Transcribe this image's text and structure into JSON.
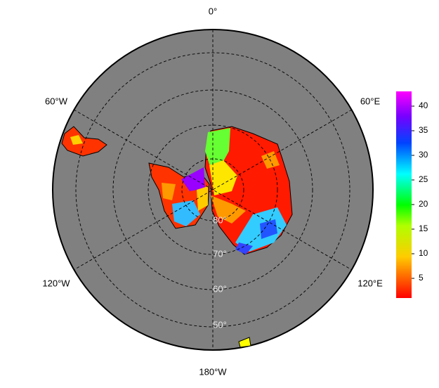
{
  "map": {
    "longitude_labels": [
      "0°",
      "60°E",
      "120°E",
      "180°W",
      "120°W",
      "60°W"
    ],
    "latitude_labels": [
      "80°",
      "70°",
      "60°",
      "50°"
    ]
  },
  "colorbar": {
    "range": [
      1,
      43
    ],
    "ticks": [
      5,
      10,
      15,
      20,
      25,
      30,
      35,
      40
    ]
  }
}
